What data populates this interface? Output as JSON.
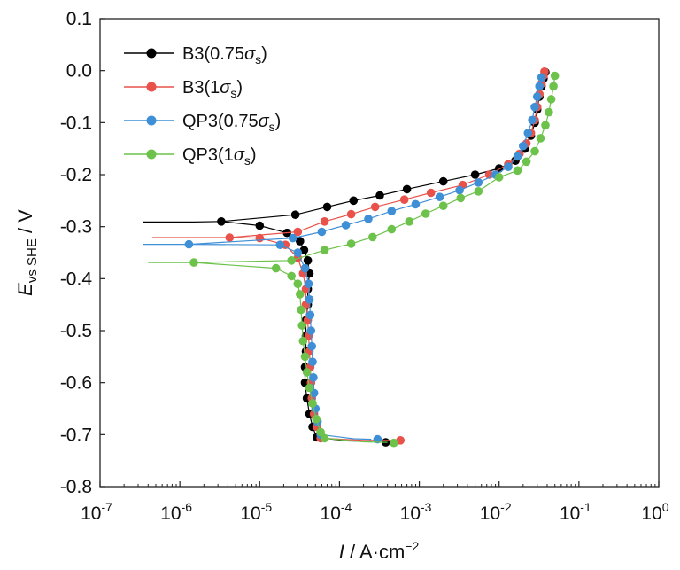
{
  "chart_data": {
    "type": "line",
    "xscale": "log",
    "xlim": [
      1e-07,
      1
    ],
    "ylim": [
      -0.8,
      0.1
    ],
    "x_ticks": [
      {
        "base": "10",
        "exp": "-7"
      },
      {
        "base": "10",
        "exp": "-6"
      },
      {
        "base": "10",
        "exp": "-5"
      },
      {
        "base": "10",
        "exp": "-4"
      },
      {
        "base": "10",
        "exp": "-3"
      },
      {
        "base": "10",
        "exp": "-2"
      },
      {
        "base": "10",
        "exp": "-1"
      },
      {
        "base": "10",
        "exp": "0"
      }
    ],
    "y_ticks": [
      "0.1",
      "0.0",
      "-0.1",
      "-0.2",
      "-0.3",
      "-0.4",
      "-0.5",
      "-0.6",
      "-0.7",
      "-0.8"
    ],
    "ylabel": {
      "main": "E",
      "sub": "vs SHE",
      "unit": " / V"
    },
    "xlabel": {
      "main": "I",
      "unit": " / A·cm",
      "sup": "−2"
    },
    "grid": false,
    "legend_position": "top-left",
    "series": [
      {
        "name": "B3(0.75σs)",
        "legend": {
          "prefix": "B3(0.75",
          "sym": "σ",
          "sub": "s",
          "suffix": ")"
        },
        "color": "#000000",
        "line_pre": [
          [
            3.5e-07,
            -0.291
          ],
          [
            1.5e-06,
            -0.291
          ],
          [
            3.3e-06,
            -0.29
          ]
        ],
        "anodic": [
          [
            1e-05,
            -0.298
          ],
          [
            2.2e-05,
            -0.312
          ],
          [
            3.2e-05,
            -0.328
          ],
          [
            3.6e-05,
            -0.345
          ],
          [
            4e-05,
            -0.365
          ],
          [
            4.2e-05,
            -0.39
          ],
          [
            4e-05,
            -0.42
          ],
          [
            4e-05,
            -0.45
          ],
          [
            3.8e-05,
            -0.48
          ],
          [
            3.8e-05,
            -0.51
          ],
          [
            3.8e-05,
            -0.54
          ],
          [
            3.7e-05,
            -0.57
          ],
          [
            3.7e-05,
            -0.6
          ],
          [
            3.9e-05,
            -0.63
          ],
          [
            4.2e-05,
            -0.66
          ],
          [
            4.6e-05,
            -0.685
          ],
          [
            5.2e-05,
            -0.705
          ]
        ],
        "cathodic_line_extra": [
          [
            0.00012,
            -0.712
          ],
          [
            0.00025,
            -0.713
          ]
        ],
        "cathodic": [
          [
            2.8e-05,
            -0.277
          ],
          [
            7e-05,
            -0.262
          ],
          [
            0.00015,
            -0.25
          ],
          [
            0.00032,
            -0.24
          ],
          [
            0.0007,
            -0.228
          ],
          [
            0.002,
            -0.213
          ],
          [
            0.005,
            -0.2
          ],
          [
            0.01,
            -0.188
          ],
          [
            0.016,
            -0.173
          ],
          [
            0.021,
            -0.15
          ],
          [
            0.025,
            -0.125
          ],
          [
            0.028,
            -0.1
          ],
          [
            0.03,
            -0.075
          ],
          [
            0.032,
            -0.05
          ],
          [
            0.034,
            -0.03
          ],
          [
            0.036,
            -0.015
          ],
          [
            0.038,
            -0.003
          ]
        ],
        "end_point": [
          0.00038,
          -0.715
        ]
      },
      {
        "name": "B3(1σs)",
        "legend": {
          "prefix": "B3(1",
          "sym": "σ",
          "sub": "s",
          "suffix": ")"
        },
        "color": "#e8524a",
        "line_pre": [
          [
            4.5e-07,
            -0.321
          ],
          [
            2.5e-06,
            -0.321
          ],
          [
            4.2e-06,
            -0.321
          ]
        ],
        "anodic": [
          [
            1e-05,
            -0.322
          ],
          [
            2.1e-05,
            -0.335
          ],
          [
            3e-05,
            -0.36
          ],
          [
            3.5e-05,
            -0.39
          ],
          [
            3.8e-05,
            -0.42
          ],
          [
            3.8e-05,
            -0.45
          ],
          [
            4e-05,
            -0.48
          ],
          [
            4.1e-05,
            -0.51
          ],
          [
            4.2e-05,
            -0.54
          ],
          [
            4.3e-05,
            -0.57
          ],
          [
            4.4e-05,
            -0.6
          ],
          [
            4.5e-05,
            -0.63
          ],
          [
            4.8e-05,
            -0.66
          ],
          [
            5.2e-05,
            -0.685
          ],
          [
            5.8e-05,
            -0.707
          ]
        ],
        "cathodic_line_extra": [
          [
            0.0002,
            -0.711
          ],
          [
            0.00045,
            -0.711
          ]
        ],
        "cathodic": [
          [
            3e-05,
            -0.31
          ],
          [
            6.5e-05,
            -0.29
          ],
          [
            0.00014,
            -0.276
          ],
          [
            0.00028,
            -0.262
          ],
          [
            0.00065,
            -0.248
          ],
          [
            0.0014,
            -0.235
          ],
          [
            0.0035,
            -0.22
          ],
          [
            0.0075,
            -0.2
          ],
          [
            0.013,
            -0.18
          ],
          [
            0.018,
            -0.16
          ],
          [
            0.022,
            -0.14
          ],
          [
            0.025,
            -0.12
          ],
          [
            0.028,
            -0.095
          ],
          [
            0.03,
            -0.07
          ],
          [
            0.032,
            -0.045
          ],
          [
            0.034,
            -0.025
          ],
          [
            0.036,
            -0.01
          ],
          [
            0.037,
            -0.002
          ]
        ],
        "end_point": [
          0.00058,
          -0.711
        ]
      },
      {
        "name": "QP3(0.75σs)",
        "legend": {
          "prefix": "QP3(0.75",
          "sym": "σ",
          "sub": "s",
          "suffix": ")"
        },
        "color": "#3f8fd6",
        "line_pre": [
          [
            3.5e-07,
            -0.334
          ],
          [
            8e-07,
            -0.334
          ],
          [
            1.3e-06,
            -0.334
          ]
        ],
        "anodic": [
          [
            1.8e-05,
            -0.335
          ],
          [
            3e-05,
            -0.35
          ],
          [
            3.7e-05,
            -0.38
          ],
          [
            4.1e-05,
            -0.41
          ],
          [
            4.2e-05,
            -0.44
          ],
          [
            4.3e-05,
            -0.47
          ],
          [
            4.4e-05,
            -0.5
          ],
          [
            4.5e-05,
            -0.53
          ],
          [
            4.6e-05,
            -0.56
          ],
          [
            4.7e-05,
            -0.59
          ],
          [
            4.8e-05,
            -0.62
          ],
          [
            5e-05,
            -0.65
          ],
          [
            5.3e-05,
            -0.675
          ],
          [
            5.8e-05,
            -0.7
          ]
        ],
        "cathodic_line_extra": [
          [
            0.00015,
            -0.708
          ],
          [
            0.00025,
            -0.709
          ]
        ],
        "cathodic": [
          [
            2.6e-05,
            -0.322
          ],
          [
            6e-05,
            -0.31
          ],
          [
            0.00012,
            -0.297
          ],
          [
            0.00023,
            -0.285
          ],
          [
            0.00045,
            -0.27
          ],
          [
            0.0009,
            -0.257
          ],
          [
            0.0018,
            -0.243
          ],
          [
            0.0032,
            -0.23
          ],
          [
            0.0055,
            -0.215
          ],
          [
            0.009,
            -0.2
          ],
          [
            0.013,
            -0.185
          ],
          [
            0.017,
            -0.165
          ],
          [
            0.02,
            -0.145
          ],
          [
            0.023,
            -0.12
          ],
          [
            0.026,
            -0.095
          ],
          [
            0.028,
            -0.07
          ],
          [
            0.03,
            -0.05
          ],
          [
            0.032,
            -0.03
          ],
          [
            0.034,
            -0.013
          ]
        ],
        "end_point": [
          0.0003,
          -0.709
        ]
      },
      {
        "name": "QP3(1σs)",
        "legend": {
          "prefix": "QP3(1",
          "sym": "σ",
          "sub": "s",
          "suffix": ")"
        },
        "color": "#6cc24a",
        "line_pre": [
          [
            4e-07,
            -0.369
          ],
          [
            1e-06,
            -0.369
          ],
          [
            1.5e-06,
            -0.369
          ]
        ],
        "anodic": [
          [
            1.6e-05,
            -0.38
          ],
          [
            2.5e-05,
            -0.395
          ],
          [
            3e-05,
            -0.41
          ],
          [
            3.2e-05,
            -0.43
          ],
          [
            3.3e-05,
            -0.46
          ],
          [
            3.4e-05,
            -0.49
          ],
          [
            3.5e-05,
            -0.52
          ],
          [
            3.7e-05,
            -0.55
          ],
          [
            3.9e-05,
            -0.58
          ],
          [
            4.2e-05,
            -0.61
          ],
          [
            4.6e-05,
            -0.64
          ],
          [
            5.1e-05,
            -0.67
          ],
          [
            5.8e-05,
            -0.695
          ],
          [
            6.5e-05,
            -0.707
          ]
        ],
        "cathodic_line_extra": [
          [
            0.0002,
            -0.714
          ],
          [
            0.0004,
            -0.715
          ]
        ],
        "cathodic": [
          [
            2.5e-05,
            -0.365
          ],
          [
            6.5e-05,
            -0.345
          ],
          [
            0.00014,
            -0.333
          ],
          [
            0.00026,
            -0.32
          ],
          [
            0.00045,
            -0.305
          ],
          [
            0.00075,
            -0.29
          ],
          [
            0.0012,
            -0.275
          ],
          [
            0.002,
            -0.26
          ],
          [
            0.0033,
            -0.245
          ],
          [
            0.0055,
            -0.232
          ],
          [
            0.01,
            -0.205
          ],
          [
            0.017,
            -0.192
          ],
          [
            0.022,
            -0.175
          ],
          [
            0.028,
            -0.155
          ],
          [
            0.033,
            -0.13
          ],
          [
            0.038,
            -0.105
          ],
          [
            0.042,
            -0.08
          ],
          [
            0.045,
            -0.055
          ],
          [
            0.048,
            -0.03
          ],
          [
            0.05,
            -0.01
          ]
        ],
        "end_point": [
          0.00048,
          -0.716
        ]
      }
    ]
  }
}
